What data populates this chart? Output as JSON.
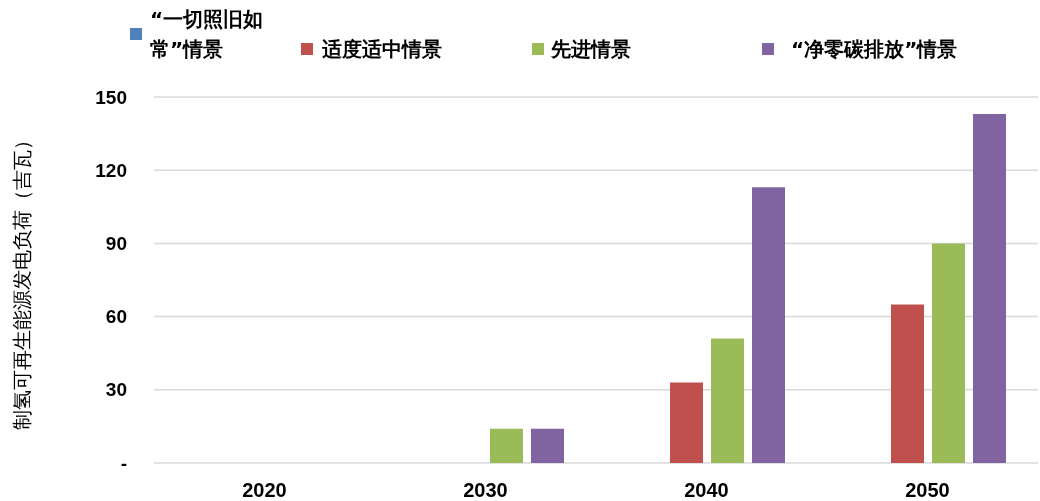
{
  "chart_data": {
    "type": "bar",
    "ylabel": "制氢可再生能源发电负荷（吉瓦）",
    "categories": [
      "2020",
      "2030",
      "2040",
      "2050"
    ],
    "series": [
      {
        "name": "“一切照旧如常”情景",
        "color": "#4f81bd",
        "values": [
          0,
          0,
          0,
          0
        ]
      },
      {
        "name": "适度适中情景",
        "color": "#c0504d",
        "values": [
          0,
          0,
          33,
          65
        ]
      },
      {
        "name": "先进情景",
        "color": "#9bbb59",
        "values": [
          0,
          14,
          51,
          90
        ]
      },
      {
        "name": "“净零碳排放”情景",
        "color": "#8064a2",
        "values": [
          0,
          14,
          113,
          143
        ]
      }
    ],
    "ylim": [
      0,
      150
    ],
    "yticks": [
      {
        "value": 0,
        "label": "-"
      },
      30,
      60,
      90,
      120,
      150
    ],
    "grid": "y",
    "legend": "top"
  }
}
